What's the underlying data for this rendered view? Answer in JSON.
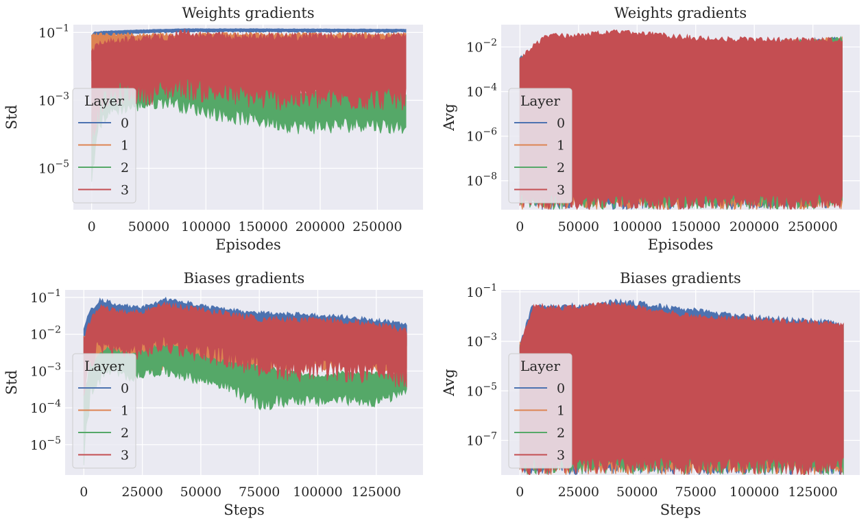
{
  "chart_data": [
    {
      "type": "area",
      "title": "Weights gradients",
      "xlabel": "Episodes",
      "ylabel": "Std",
      "yscale": "log",
      "xlim": [
        -16000,
        290000
      ],
      "ylim": [
        6e-07,
        0.17
      ],
      "x_ticks": [
        0,
        50000,
        100000,
        150000,
        200000,
        250000
      ],
      "x_tick_labels": [
        "0",
        "50000",
        "100000",
        "150000",
        "200000",
        "250000"
      ],
      "y_ticks": [
        0.1,
        0.001,
        1e-05
      ],
      "y_tick_labels": [
        "10^-1",
        "10^-3",
        "10^-5"
      ],
      "grid": true,
      "legend": {
        "title": "Layer",
        "placement": "center-left",
        "entries": [
          "0",
          "1",
          "2",
          "3"
        ]
      },
      "series": [
        {
          "name": "0",
          "color": "#4c72b0",
          "x": [
            0,
            2000,
            8000,
            20000,
            40000,
            60000,
            80000,
            100000,
            150000,
            200000,
            250000,
            275000
          ],
          "upper": [
            0.08,
            0.105,
            0.11,
            0.115,
            0.12,
            0.125,
            0.13,
            0.13,
            0.13,
            0.128,
            0.127,
            0.126
          ],
          "lower": [
            0.08,
            0.06,
            0.07,
            0.08,
            0.09,
            0.095,
            0.1,
            0.1,
            0.1,
            0.1,
            0.1,
            0.1
          ]
        },
        {
          "name": "1",
          "color": "#dd8452",
          "x": [
            0,
            275000
          ],
          "upper": [
            0.1,
            0.1
          ],
          "lower": [
            0.01,
            0.01
          ]
        },
        {
          "name": "2",
          "color": "#55a868",
          "x": [
            0,
            5000,
            15000,
            30000,
            50000,
            70000,
            80000,
            100000,
            120000,
            150000,
            180000,
            210000,
            240000,
            260000,
            275000
          ],
          "upper": [
            0.0005,
            0.002,
            0.003,
            0.005,
            0.007,
            0.01,
            0.008,
            0.006,
            0.004,
            0.003,
            0.002,
            0.0025,
            0.003,
            0.0025,
            0.002
          ],
          "lower": [
            1e-06,
            0.0001,
            0.0003,
            0.0004,
            0.0005,
            0.0006,
            0.0004,
            0.0003,
            0.0002,
            0.00015,
            0.0001,
            0.0001,
            0.00012,
            0.0001,
            0.0001
          ]
        },
        {
          "name": "3",
          "color": "#c44e52",
          "x": [
            0,
            10000,
            30000,
            50000,
            70000,
            78000,
            90000,
            120000,
            150000,
            200000,
            250000,
            275000
          ],
          "upper": [
            0.04,
            0.07,
            0.08,
            0.09,
            0.1,
            0.14,
            0.11,
            0.1,
            0.1,
            0.1,
            0.1,
            0.1
          ],
          "lower": [
            5e-05,
            0.0005,
            0.0008,
            0.0007,
            0.001,
            0.0012,
            0.0009,
            0.0007,
            0.0005,
            0.0005,
            0.0005,
            0.0005
          ]
        }
      ]
    },
    {
      "type": "area",
      "title": "Weights gradients",
      "xlabel": "Episodes",
      "ylabel": "Avg",
      "yscale": "log",
      "xlim": [
        -16000,
        290000
      ],
      "ylim": [
        5e-10,
        0.1
      ],
      "x_ticks": [
        0,
        50000,
        100000,
        150000,
        200000,
        250000
      ],
      "x_tick_labels": [
        "0",
        "50000",
        "100000",
        "150000",
        "200000",
        "250000"
      ],
      "y_ticks": [
        0.01,
        0.0001,
        1e-06,
        1e-08
      ],
      "y_tick_labels": [
        "10^-2",
        "10^-4",
        "10^-6",
        "10^-8"
      ],
      "grid": true,
      "legend": {
        "title": "Layer",
        "placement": "center-left",
        "entries": [
          "0",
          "1",
          "2",
          "3"
        ]
      },
      "series": [
        {
          "name": "0",
          "color": "#4c72b0",
          "x": [
            0,
            275000
          ],
          "upper": [
            0.004,
            0.03
          ],
          "lower": [
            5e-10,
            5e-10
          ]
        },
        {
          "name": "1",
          "color": "#dd8452",
          "x": [
            0,
            275000
          ],
          "upper": [
            0.004,
            0.03
          ],
          "lower": [
            5e-10,
            5e-10
          ]
        },
        {
          "name": "2",
          "color": "#55a868",
          "x": [
            0,
            275000
          ],
          "upper": [
            0.004,
            0.03
          ],
          "lower": [
            5e-10,
            5e-10
          ]
        },
        {
          "name": "3",
          "color": "#c44e52",
          "x": [
            0,
            2000,
            8000,
            15000,
            25000,
            40000,
            60000,
            80000,
            100000,
            130000,
            160000,
            200000,
            250000,
            275000
          ],
          "upper": [
            0.004,
            0.005,
            0.01,
            0.02,
            0.045,
            0.04,
            0.05,
            0.06,
            0.055,
            0.04,
            0.03,
            0.028,
            0.027,
            0.027
          ],
          "lower": [
            5e-10,
            5e-10,
            5e-10,
            5e-10,
            5e-10,
            5e-10,
            5e-10,
            5e-10,
            5e-10,
            5e-10,
            5e-10,
            5e-10,
            5e-10,
            5e-10
          ]
        }
      ]
    },
    {
      "type": "area",
      "title": "Biases gradients",
      "xlabel": "Steps",
      "ylabel": "Std",
      "yscale": "log",
      "xlim": [
        -8000,
        145000
      ],
      "ylim": [
        1.5e-06,
        0.16
      ],
      "x_ticks": [
        0,
        25000,
        50000,
        75000,
        100000,
        125000
      ],
      "x_tick_labels": [
        "0",
        "25000",
        "50000",
        "75000",
        "100000",
        "125000"
      ],
      "y_ticks": [
        0.1,
        0.01,
        0.001,
        0.0001,
        1e-05
      ],
      "y_tick_labels": [
        "10^-1",
        "10^-2",
        "10^-3",
        "10^-4",
        "10^-5"
      ],
      "grid": true,
      "legend": {
        "title": "Layer",
        "placement": "center-left",
        "entries": [
          "0",
          "1",
          "2",
          "3"
        ]
      },
      "series": [
        {
          "name": "0",
          "color": "#4c72b0",
          "x": [
            0,
            3000,
            7000,
            15000,
            25000,
            35000,
            45000,
            55000,
            70000,
            90000,
            110000,
            130000,
            138000
          ],
          "upper": [
            0.02,
            0.05,
            0.1,
            0.07,
            0.06,
            0.1,
            0.08,
            0.06,
            0.045,
            0.04,
            0.035,
            0.025,
            0.02
          ],
          "lower": [
            0.001,
            0.005,
            0.01,
            0.008,
            0.008,
            0.01,
            0.008,
            0.006,
            0.005,
            0.004,
            0.003,
            0.003,
            0.003
          ]
        },
        {
          "name": "1",
          "color": "#dd8452",
          "x": [
            0,
            138000
          ],
          "upper": [
            0.01,
            0.01
          ],
          "lower": [
            0.001,
            0.001
          ]
        },
        {
          "name": "2",
          "color": "#55a868",
          "x": [
            0,
            3000,
            10000,
            20000,
            30000,
            40000,
            50000,
            60000,
            76000,
            90000,
            100000,
            110000,
            125000,
            138000
          ],
          "upper": [
            0.0003,
            0.002,
            0.005,
            0.003,
            0.005,
            0.006,
            0.003,
            0.002,
            0.0015,
            0.001,
            0.0008,
            0.001,
            0.001,
            0.001
          ],
          "lower": [
            2e-06,
            0.0002,
            0.0007,
            0.0005,
            0.0007,
            0.0006,
            0.0004,
            0.0003,
            7e-05,
            0.00012,
            0.0001,
            0.00012,
            0.0001,
            0.0002
          ]
        },
        {
          "name": "3",
          "color": "#c44e52",
          "x": [
            0,
            3000,
            7000,
            15000,
            25000,
            35000,
            45000,
            55000,
            70000,
            90000,
            110000,
            130000,
            138000
          ],
          "upper": [
            0.01,
            0.03,
            0.07,
            0.05,
            0.05,
            0.08,
            0.06,
            0.05,
            0.035,
            0.03,
            0.03,
            0.02,
            0.015
          ],
          "lower": [
            0.0001,
            0.001,
            0.003,
            0.002,
            0.002,
            0.003,
            0.002,
            0.0015,
            0.0008,
            0.0005,
            0.0005,
            0.0004,
            0.0003
          ]
        }
      ]
    },
    {
      "type": "area",
      "title": "Biases gradients",
      "xlabel": "Steps",
      "ylabel": "Avg",
      "yscale": "log",
      "xlim": [
        -8000,
        145000
      ],
      "ylim": [
        4e-09,
        0.12
      ],
      "x_ticks": [
        0,
        25000,
        50000,
        75000,
        100000,
        125000
      ],
      "x_tick_labels": [
        "0",
        "25000",
        "50000",
        "75000",
        "100000",
        "125000"
      ],
      "y_ticks": [
        0.1,
        0.001,
        1e-05,
        1e-07
      ],
      "y_tick_labels": [
        "10^-1",
        "10^-3",
        "10^-5",
        "10^-7"
      ],
      "grid": true,
      "legend": {
        "title": "Layer",
        "placement": "center-left",
        "entries": [
          "0",
          "1",
          "2",
          "3"
        ]
      },
      "series": [
        {
          "name": "0",
          "color": "#4c72b0",
          "x": [
            0,
            5000,
            15000,
            30000,
            40000,
            50000,
            70000,
            100000,
            138000
          ],
          "upper": [
            0.001,
            0.03,
            0.035,
            0.035,
            0.055,
            0.045,
            0.025,
            0.012,
            0.007
          ],
          "lower": [
            4e-09,
            4e-09,
            4e-09,
            4e-09,
            4e-09,
            4e-09,
            4e-09,
            4e-09,
            4e-09
          ]
        },
        {
          "name": "1",
          "color": "#dd8452",
          "x": [
            0,
            138000
          ],
          "upper": [
            0.001,
            0.005
          ],
          "lower": [
            4e-09,
            4e-09
          ]
        },
        {
          "name": "2",
          "color": "#55a868",
          "x": [
            0,
            138000
          ],
          "upper": [
            0.001,
            0.005
          ],
          "lower": [
            4e-09,
            4e-09
          ]
        },
        {
          "name": "3",
          "color": "#c44e52",
          "x": [
            0,
            3000,
            6000,
            15000,
            25000,
            35000,
            45000,
            60000,
            80000,
            100000,
            120000,
            138000
          ],
          "upper": [
            0.001,
            0.005,
            0.035,
            0.03,
            0.03,
            0.04,
            0.04,
            0.02,
            0.012,
            0.01,
            0.008,
            0.006
          ],
          "lower": [
            4e-09,
            4e-09,
            4e-09,
            4e-09,
            4e-09,
            4e-09,
            4e-09,
            4e-09,
            4e-09,
            4e-09,
            4e-09,
            4e-09
          ]
        }
      ]
    }
  ]
}
